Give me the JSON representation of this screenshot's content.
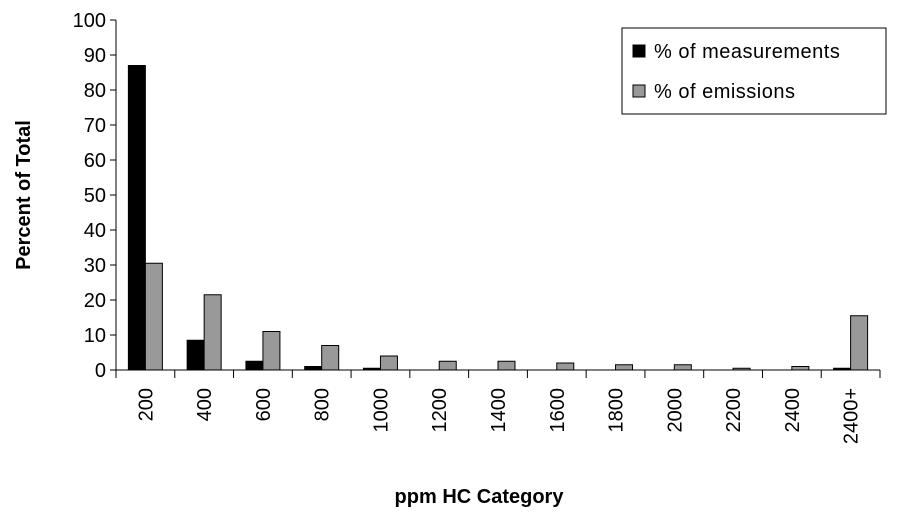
{
  "chart_data": {
    "type": "bar",
    "categories": [
      "200",
      "400",
      "600",
      "800",
      "1000",
      "1200",
      "1400",
      "1600",
      "1800",
      "2000",
      "2200",
      "2400",
      "2400+"
    ],
    "series": [
      {
        "name": "% of measurements",
        "color": "#000000",
        "values": [
          87,
          8.5,
          2.5,
          1,
          0.5,
          0,
          0,
          0,
          0,
          0,
          0,
          0,
          0.5
        ]
      },
      {
        "name": "% of emissions",
        "color": "#999999",
        "values": [
          30.5,
          21.5,
          11,
          7,
          4,
          2.5,
          2.5,
          2,
          1.5,
          1.5,
          0.5,
          1,
          15.5
        ]
      }
    ],
    "xlabel": "ppm HC Category",
    "ylabel": "Percent of Total",
    "ylim": [
      0,
      100
    ],
    "yticks": [
      0,
      10,
      20,
      30,
      40,
      50,
      60,
      70,
      80,
      90,
      100
    ],
    "grid": false,
    "legend_position": "top-right"
  }
}
